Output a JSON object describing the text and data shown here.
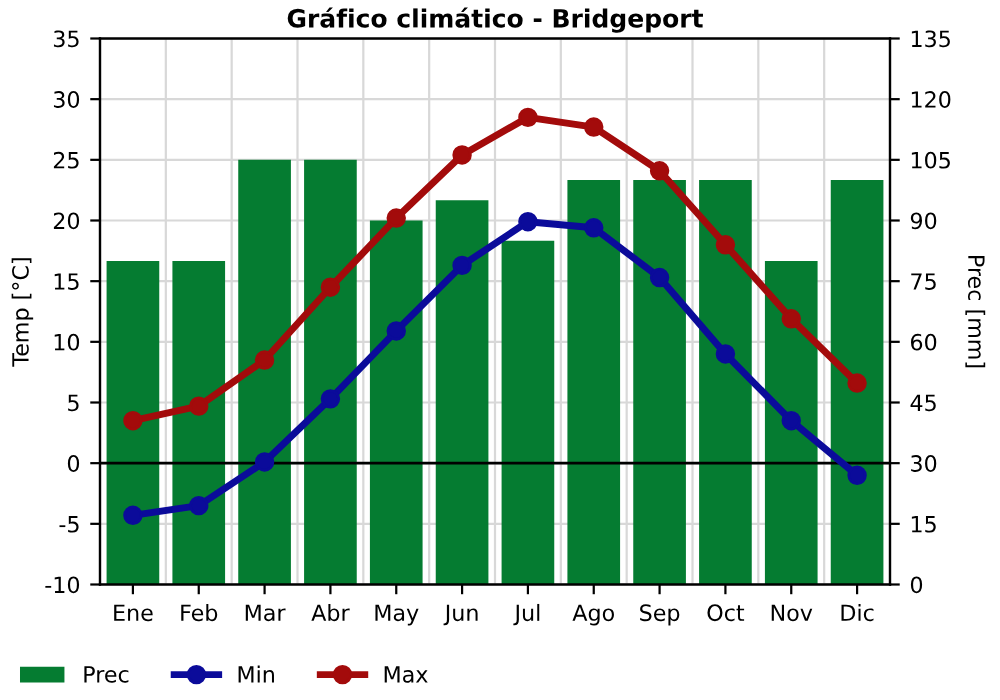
{
  "chart_data": {
    "type": "bar",
    "title": "Gráfico climático - Bridgeport",
    "ylabel": "Temp [°C]",
    "y2label": "Prec [mm]",
    "categories": [
      "Ene",
      "Feb",
      "Mar",
      "Abr",
      "May",
      "Jun",
      "Jul",
      "Ago",
      "Sep",
      "Oct",
      "Nov",
      "Dic"
    ],
    "series": [
      {
        "name": "Prec",
        "axis": "y2",
        "color": "#057c31",
        "values": [
          80,
          80,
          105,
          105,
          90,
          95,
          85,
          100,
          100,
          100,
          80,
          100
        ]
      },
      {
        "name": "Min",
        "type": "line",
        "color": "#0b0b9a",
        "marker": "circle",
        "values": [
          -4.3,
          -3.5,
          0.1,
          5.3,
          10.9,
          16.3,
          19.9,
          19.4,
          15.3,
          9.0,
          3.5,
          -1.0
        ]
      },
      {
        "name": "Max",
        "type": "line",
        "color": "#a30b0b",
        "marker": "circle",
        "values": [
          3.5,
          4.7,
          8.5,
          14.5,
          20.2,
          25.4,
          28.5,
          27.7,
          24.1,
          18.0,
          11.9,
          6.6
        ]
      }
    ],
    "ylim": [
      -10,
      35
    ],
    "yticks": [
      -10,
      -5,
      0,
      5,
      10,
      15,
      20,
      25,
      30,
      35
    ],
    "y2lim": [
      0,
      135
    ],
    "y2ticks": [
      0,
      15,
      30,
      45,
      60,
      75,
      90,
      105,
      120,
      135
    ],
    "ref_lines": [
      {
        "axis": "y",
        "value": 0,
        "color": "#000000"
      }
    ],
    "grid": true,
    "legend": "bottom"
  }
}
